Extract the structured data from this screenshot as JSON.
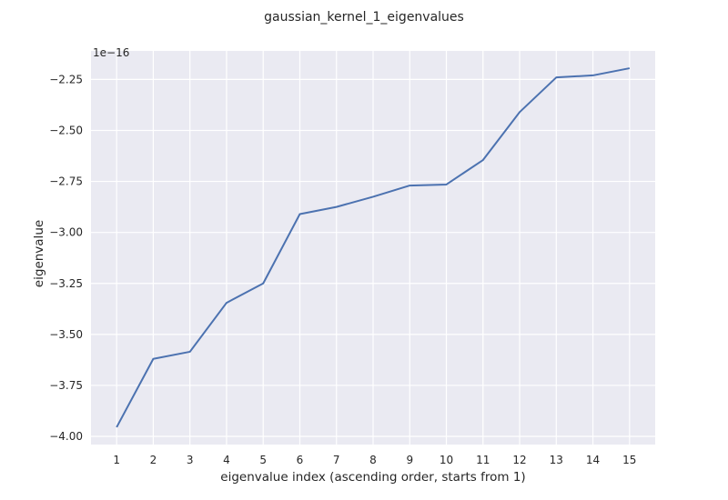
{
  "chart_data": {
    "type": "line",
    "title": "gaussian_kernel_1_eigenvalues",
    "xlabel": "eigenvalue index (ascending order, starts from 1)",
    "ylabel": "eigenvalue",
    "y_offset_label": "1e−16",
    "x": [
      1,
      2,
      3,
      4,
      5,
      6,
      7,
      8,
      9,
      10,
      11,
      12,
      13,
      14,
      15
    ],
    "series": [
      {
        "values": [
          -3.955e-16,
          -3.62e-16,
          -3.585e-16,
          -3.345e-16,
          -3.25e-16,
          -2.91e-16,
          -2.875e-16,
          -2.825e-16,
          -2.77e-16,
          -2.765e-16,
          -2.645e-16,
          -2.41e-16,
          -2.24e-16,
          -2.23e-16,
          -2.195e-16
        ],
        "color": "#4c72b0"
      }
    ],
    "xlim": [
      0.3,
      15.7
    ],
    "ylim": [
      -4.04e-16,
      -2.11e-16
    ],
    "x_ticks": [
      "1",
      "2",
      "3",
      "4",
      "5",
      "6",
      "7",
      "8",
      "9",
      "10",
      "11",
      "12",
      "13",
      "14",
      "15"
    ],
    "y_ticks": [
      "−2.25",
      "−2.50",
      "−2.75",
      "−3.00",
      "−3.25",
      "−3.50",
      "−3.75",
      "−4.00"
    ],
    "y_tick_values": [
      -2.25,
      -2.5,
      -2.75,
      -3.0,
      -3.25,
      -3.5,
      -3.75,
      -4.0
    ],
    "grid": true,
    "style": {
      "background": "#eaeaf2",
      "grid_color": "#ffffff"
    }
  }
}
